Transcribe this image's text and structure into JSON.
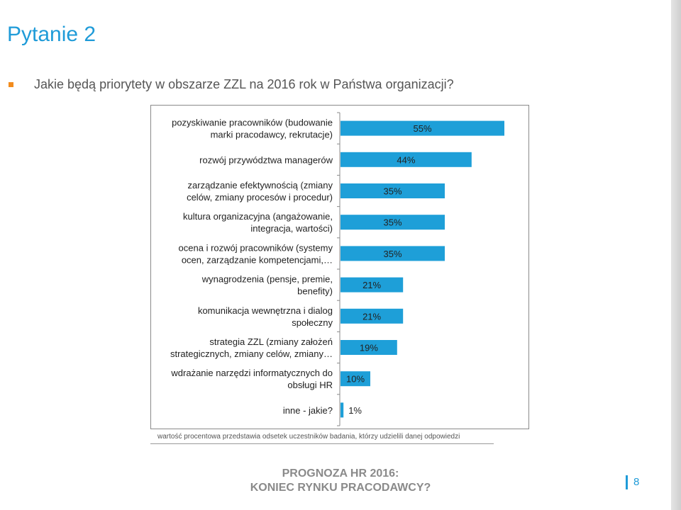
{
  "slide": {
    "title": "Pytanie 2",
    "question": "Jakie będą priorytety w obszarze ZZL na 2016 rok w Państwa organizacji?",
    "caption": "wartość procentowa przedstawia odsetek uczestników badania, którzy udzielili danej odpowiedzi",
    "footer_line1": "PROGNOZA HR 2016:",
    "footer_line2": "KONIEC RYNKU PRACODAWCY?",
    "page_number": "8"
  },
  "colors": {
    "accent": "#1f9bd8",
    "bullet": "#f28c1e",
    "bar": "#1e9fd8"
  },
  "chart_data": {
    "type": "bar",
    "orientation": "horizontal",
    "categories": [
      [
        "pozyskiwanie pracowników (budowanie",
        "marki pracodawcy, rekrutacje)"
      ],
      [
        "rozwój przywództwa managerów"
      ],
      [
        "zarządzanie efektywnością (zmiany",
        "celów, zmiany procesów i procedur)"
      ],
      [
        "kultura organizacyjna (angażowanie,",
        "integracja, wartości)"
      ],
      [
        "ocena i rozwój pracowników (systemy",
        "ocen, zarządzanie kompetencjami,…"
      ],
      [
        "wynagrodzenia (pensje, premie,",
        "benefity)"
      ],
      [
        "komunikacja wewnętrzna i dialog",
        "społeczny"
      ],
      [
        "strategia ZZL (zmiany założeń",
        "strategicznych, zmiany celów, zmiany…"
      ],
      [
        "wdrażanie narzędzi informatycznych do",
        "obsługi HR"
      ],
      [
        "inne - jakie?"
      ]
    ],
    "values": [
      55,
      44,
      35,
      35,
      35,
      21,
      21,
      19,
      10,
      1
    ],
    "value_labels": [
      "55%",
      "44%",
      "35%",
      "35%",
      "35%",
      "21%",
      "21%",
      "19%",
      "10%",
      "1%"
    ],
    "xlim": [
      0,
      55
    ],
    "grid": false,
    "legend": "none"
  }
}
